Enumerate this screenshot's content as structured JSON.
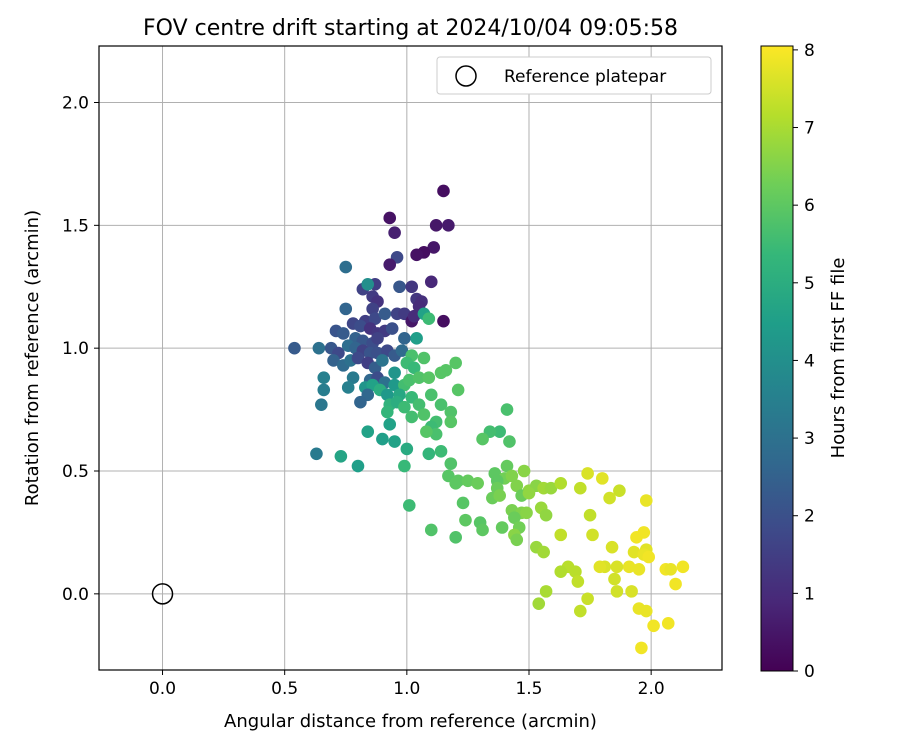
{
  "chart_data": {
    "type": "scatter",
    "title": "FOV centre drift starting at 2024/10/04 09:05:58",
    "xlabel": "Angular distance from reference (arcmin)",
    "ylabel": "Rotation from reference (arcmin)",
    "xlim": [
      -0.26,
      2.29
    ],
    "ylim": [
      -0.31,
      2.23
    ],
    "xticks": [
      0.0,
      0.5,
      1.0,
      1.5,
      2.0
    ],
    "xtick_labels": [
      "0.0",
      "0.5",
      "1.0",
      "1.5",
      "2.0"
    ],
    "yticks": [
      0.0,
      0.5,
      1.0,
      1.5,
      2.0
    ],
    "ytick_labels": [
      "0.0",
      "0.5",
      "1.0",
      "1.5",
      "2.0"
    ],
    "grid": true,
    "legend": {
      "placement": "top-right",
      "entries": [
        "Reference platepar"
      ]
    },
    "reference_point": {
      "x": 0.0,
      "y": 0.0,
      "label": "Reference platepar"
    },
    "colorbar": {
      "label": "Hours from first FF file",
      "range": [
        0,
        8.05
      ],
      "ticks": [
        0,
        1,
        2,
        3,
        4,
        5,
        6,
        7,
        8
      ],
      "tick_labels": [
        "0",
        "1",
        "2",
        "3",
        "4",
        "5",
        "6",
        "7",
        "8"
      ],
      "colormap": "viridis"
    },
    "colors": {
      "viridis": [
        "#440154",
        "#482878",
        "#3e4989",
        "#31688e",
        "#26828e",
        "#1f9e89",
        "#35b779",
        "#6ece58",
        "#b5de2b",
        "#fde725"
      ]
    },
    "columns": [
      "x",
      "y",
      "hours"
    ],
    "points": [
      [
        1.15,
        1.64,
        0.3
      ],
      [
        0.93,
        1.53,
        0.4
      ],
      [
        1.12,
        1.5,
        0.5
      ],
      [
        1.17,
        1.5,
        0.6
      ],
      [
        0.95,
        1.47,
        0.7
      ],
      [
        1.11,
        1.41,
        0.5
      ],
      [
        1.07,
        1.39,
        0.3
      ],
      [
        1.04,
        1.38,
        0.4
      ],
      [
        0.96,
        1.37,
        1.8
      ],
      [
        0.93,
        1.34,
        0.6
      ],
      [
        0.75,
        1.33,
        2.9
      ],
      [
        1.1,
        1.27,
        0.9
      ],
      [
        0.87,
        1.26,
        1.5
      ],
      [
        0.82,
        1.24,
        1.6
      ],
      [
        0.84,
        1.26,
        4.0
      ],
      [
        0.97,
        1.25,
        2.2
      ],
      [
        1.02,
        1.25,
        1.3
      ],
      [
        0.86,
        1.21,
        1.4
      ],
      [
        0.88,
        1.19,
        1.2
      ],
      [
        1.04,
        1.2,
        1.3
      ],
      [
        1.06,
        1.19,
        1.1
      ],
      [
        1.05,
        1.17,
        1.0
      ],
      [
        0.75,
        1.16,
        2.6
      ],
      [
        0.86,
        1.16,
        1.6
      ],
      [
        0.96,
        1.14,
        1.6
      ],
      [
        0.99,
        1.14,
        1.4
      ],
      [
        1.02,
        1.11,
        0.5
      ],
      [
        1.03,
        1.13,
        1.0
      ],
      [
        1.15,
        1.11,
        0.3
      ],
      [
        0.83,
        1.11,
        1.5
      ],
      [
        0.87,
        1.12,
        1.8
      ],
      [
        0.91,
        1.14,
        2.3
      ],
      [
        1.07,
        1.14,
        4.6
      ],
      [
        1.09,
        1.12,
        5.5
      ],
      [
        0.78,
        1.1,
        1.7
      ],
      [
        0.81,
        1.09,
        1.9
      ],
      [
        0.85,
        1.08,
        1.2
      ],
      [
        0.88,
        1.06,
        1.3
      ],
      [
        0.91,
        1.07,
        1.4
      ],
      [
        0.94,
        1.08,
        2.0
      ],
      [
        0.71,
        1.07,
        2.1
      ],
      [
        0.74,
        1.06,
        2.3
      ],
      [
        0.79,
        1.04,
        2.5
      ],
      [
        0.82,
        1.03,
        2.2
      ],
      [
        0.86,
        1.02,
        1.9
      ],
      [
        0.88,
        1.04,
        1.6
      ],
      [
        0.99,
        1.04,
        2.6
      ],
      [
        1.04,
        1.04,
        4.5
      ],
      [
        0.54,
        1.0,
        2.3
      ],
      [
        0.64,
        1.0,
        3.0
      ],
      [
        0.69,
        1.0,
        2.2
      ],
      [
        0.72,
        0.98,
        1.8
      ],
      [
        0.76,
        1.01,
        2.9
      ],
      [
        0.79,
        1.0,
        2.6
      ],
      [
        0.82,
        0.99,
        1.6
      ],
      [
        0.85,
        0.98,
        2.1
      ],
      [
        0.88,
        0.98,
        2.0
      ],
      [
        0.92,
        0.99,
        1.8
      ],
      [
        0.95,
        0.97,
        2.3
      ],
      [
        0.98,
        0.99,
        2.8
      ],
      [
        1.02,
        0.97,
        5.7
      ],
      [
        0.7,
        0.95,
        2.5
      ],
      [
        0.74,
        0.93,
        2.8
      ],
      [
        0.77,
        0.95,
        3.0
      ],
      [
        0.8,
        0.96,
        1.8
      ],
      [
        0.84,
        0.94,
        1.5
      ],
      [
        0.87,
        0.92,
        2.4
      ],
      [
        0.9,
        0.95,
        3.1
      ],
      [
        0.95,
        0.9,
        4.2
      ],
      [
        1.0,
        0.94,
        5.5
      ],
      [
        1.03,
        0.92,
        5.4
      ],
      [
        1.07,
        0.96,
        5.8
      ],
      [
        1.14,
        0.9,
        5.9
      ],
      [
        1.16,
        0.91,
        5.9
      ],
      [
        1.2,
        0.94,
        5.9
      ],
      [
        0.66,
        0.88,
        3.5
      ],
      [
        0.78,
        0.88,
        3.3
      ],
      [
        0.85,
        0.87,
        2.7
      ],
      [
        0.88,
        0.88,
        1.9
      ],
      [
        0.91,
        0.86,
        3.0
      ],
      [
        0.95,
        0.85,
        4.3
      ],
      [
        0.99,
        0.85,
        5.6
      ],
      [
        1.01,
        0.87,
        5.7
      ],
      [
        1.05,
        0.88,
        5.8
      ],
      [
        1.09,
        0.88,
        5.9
      ],
      [
        0.66,
        0.83,
        3.4
      ],
      [
        0.76,
        0.84,
        3.5
      ],
      [
        0.83,
        0.84,
        4.2
      ],
      [
        0.86,
        0.85,
        4.6
      ],
      [
        0.89,
        0.83,
        5.0
      ],
      [
        0.92,
        0.81,
        4.3
      ],
      [
        0.84,
        0.81,
        2.7
      ],
      [
        0.97,
        0.81,
        4.8
      ],
      [
        1.02,
        0.8,
        5.4
      ],
      [
        1.1,
        0.81,
        5.7
      ],
      [
        1.21,
        0.83,
        5.9
      ],
      [
        0.65,
        0.77,
        3.2
      ],
      [
        0.81,
        0.78,
        2.6
      ],
      [
        0.93,
        0.77,
        5.2
      ],
      [
        0.96,
        0.78,
        5.0
      ],
      [
        0.99,
        0.76,
        5.5
      ],
      [
        1.05,
        0.77,
        5.6
      ],
      [
        1.14,
        0.77,
        5.7
      ],
      [
        1.18,
        0.74,
        5.8
      ],
      [
        0.92,
        0.74,
        5.3
      ],
      [
        1.02,
        0.72,
        5.6
      ],
      [
        1.07,
        0.73,
        5.8
      ],
      [
        1.12,
        0.7,
        5.6
      ],
      [
        1.18,
        0.7,
        5.9
      ],
      [
        1.41,
        0.75,
        5.7
      ],
      [
        0.93,
        0.69,
        4.6
      ],
      [
        1.1,
        0.68,
        5.5
      ],
      [
        1.12,
        0.65,
        5.7
      ],
      [
        1.08,
        0.66,
        5.9
      ],
      [
        0.84,
        0.66,
        4.6
      ],
      [
        0.9,
        0.63,
        4.5
      ],
      [
        0.95,
        0.62,
        4.6
      ],
      [
        1.38,
        0.66,
        5.5
      ],
      [
        1.34,
        0.66,
        5.6
      ],
      [
        1.42,
        0.62,
        5.8
      ],
      [
        1.31,
        0.63,
        5.9
      ],
      [
        1.0,
        0.59,
        4.9
      ],
      [
        1.09,
        0.57,
        5.3
      ],
      [
        1.14,
        0.58,
        5.5
      ],
      [
        0.63,
        0.57,
        3.3
      ],
      [
        0.73,
        0.56,
        4.7
      ],
      [
        0.8,
        0.52,
        4.5
      ],
      [
        0.99,
        0.52,
        5.4
      ],
      [
        1.18,
        0.53,
        5.8
      ],
      [
        1.41,
        0.52,
        6.1
      ],
      [
        1.48,
        0.5,
        6.6
      ],
      [
        1.36,
        0.49,
        6.0
      ],
      [
        1.4,
        0.47,
        6.3
      ],
      [
        1.37,
        0.46,
        6.0
      ],
      [
        1.43,
        0.48,
        6.5
      ],
      [
        1.17,
        0.48,
        5.9
      ],
      [
        1.21,
        0.46,
        6.0
      ],
      [
        1.2,
        0.45,
        6.0
      ],
      [
        1.25,
        0.46,
        6.1
      ],
      [
        1.29,
        0.45,
        6.2
      ],
      [
        1.37,
        0.43,
        6.2
      ],
      [
        1.45,
        0.44,
        6.5
      ],
      [
        1.5,
        0.42,
        6.7
      ],
      [
        1.53,
        0.44,
        6.6
      ],
      [
        1.56,
        0.43,
        6.9
      ],
      [
        1.59,
        0.43,
        6.8
      ],
      [
        1.63,
        0.45,
        7.1
      ],
      [
        1.74,
        0.49,
        7.6
      ],
      [
        1.8,
        0.47,
        7.7
      ],
      [
        1.71,
        0.43,
        7.3
      ],
      [
        1.87,
        0.42,
        7.4
      ],
      [
        1.35,
        0.39,
        6.2
      ],
      [
        1.38,
        0.4,
        6.4
      ],
      [
        1.47,
        0.4,
        6.2
      ],
      [
        1.5,
        0.41,
        6.7
      ],
      [
        1.23,
        0.37,
        5.9
      ],
      [
        1.01,
        0.36,
        5.5
      ],
      [
        1.43,
        0.34,
        6.4
      ],
      [
        1.47,
        0.33,
        6.5
      ],
      [
        1.55,
        0.35,
        6.8
      ],
      [
        1.57,
        0.32,
        6.7
      ],
      [
        1.44,
        0.31,
        6.2
      ],
      [
        1.49,
        0.33,
        6.6
      ],
      [
        1.75,
        0.32,
        7.3
      ],
      [
        1.83,
        0.39,
        7.5
      ],
      [
        1.98,
        0.38,
        7.8
      ],
      [
        1.24,
        0.3,
        6.0
      ],
      [
        1.3,
        0.29,
        5.9
      ],
      [
        1.31,
        0.26,
        6.0
      ],
      [
        1.39,
        0.27,
        6.1
      ],
      [
        1.46,
        0.27,
        6.3
      ],
      [
        1.44,
        0.24,
        6.6
      ],
      [
        1.45,
        0.22,
        6.4
      ],
      [
        1.1,
        0.26,
        5.8
      ],
      [
        1.2,
        0.23,
        5.8
      ],
      [
        1.63,
        0.24,
        7.3
      ],
      [
        1.76,
        0.24,
        7.5
      ],
      [
        1.94,
        0.23,
        7.9
      ],
      [
        1.97,
        0.25,
        7.9
      ],
      [
        1.53,
        0.19,
        6.8
      ],
      [
        1.56,
        0.17,
        6.9
      ],
      [
        1.84,
        0.19,
        7.6
      ],
      [
        1.93,
        0.17,
        7.7
      ],
      [
        1.98,
        0.18,
        7.7
      ],
      [
        1.97,
        0.16,
        7.8
      ],
      [
        1.99,
        0.15,
        7.9
      ],
      [
        1.91,
        0.11,
        7.8
      ],
      [
        1.95,
        0.1,
        7.8
      ],
      [
        2.06,
        0.1,
        7.9
      ],
      [
        2.08,
        0.1,
        7.8
      ],
      [
        2.13,
        0.11,
        7.9
      ],
      [
        1.81,
        0.11,
        7.6
      ],
      [
        1.79,
        0.11,
        7.7
      ],
      [
        1.86,
        0.11,
        7.6
      ],
      [
        1.85,
        0.06,
        7.5
      ],
      [
        1.86,
        0.01,
        7.5
      ],
      [
        1.66,
        0.11,
        7.2
      ],
      [
        1.69,
        0.09,
        7.2
      ],
      [
        1.7,
        0.05,
        7.3
      ],
      [
        2.1,
        0.04,
        7.9
      ],
      [
        1.63,
        0.09,
        7.1
      ],
      [
        1.92,
        0.01,
        7.6
      ],
      [
        1.57,
        0.01,
        7.0
      ],
      [
        1.74,
        -0.02,
        7.4
      ],
      [
        1.54,
        -0.04,
        6.9
      ],
      [
        1.71,
        -0.07,
        7.3
      ],
      [
        1.95,
        -0.06,
        7.8
      ],
      [
        1.98,
        -0.07,
        7.8
      ],
      [
        2.01,
        -0.13,
        7.9
      ],
      [
        2.07,
        -0.12,
        7.9
      ],
      [
        1.96,
        -0.22,
        7.9
      ]
    ]
  }
}
